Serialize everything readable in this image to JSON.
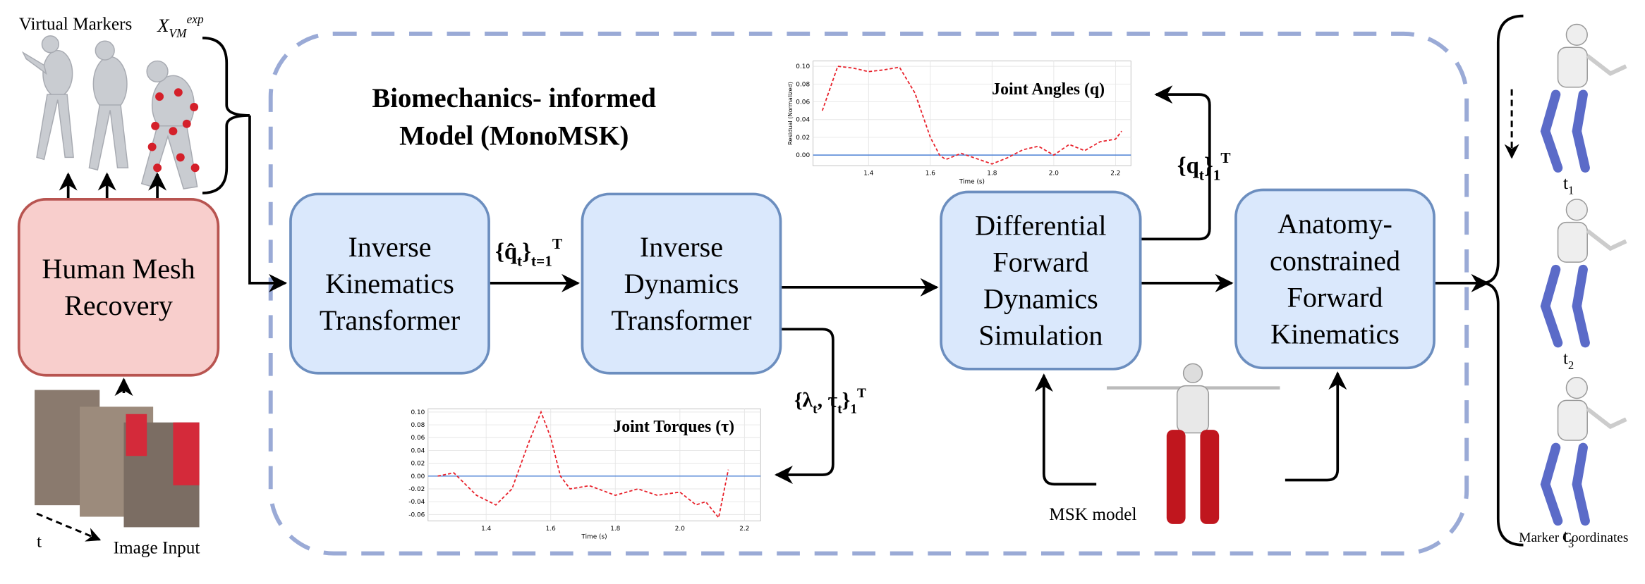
{
  "title": {
    "lines": [
      "Biomechanics- informed",
      "Model (MonoMSK)"
    ]
  },
  "virtual_markers": {
    "text": "Virtual Markers",
    "math": [
      {
        "t": "X"
      },
      {
        "t": "VM",
        "s": "sub"
      },
      {
        "t": "exp",
        "s": "sup"
      }
    ]
  },
  "image_input": "Image Input",
  "time_label": "t",
  "msk_model": "MSK model",
  "marker_coordinates": "Marker Coordinates",
  "frames": [
    [
      {
        "t": "t"
      },
      {
        "t": "1",
        "s": "sub"
      }
    ],
    [
      {
        "t": "t"
      },
      {
        "t": "2",
        "s": "sub"
      }
    ],
    [
      {
        "t": "t"
      },
      {
        "t": "3",
        "s": "sub"
      }
    ]
  ],
  "nodes": [
    {
      "lines": [
        "Human Mesh",
        "Recovery"
      ]
    },
    {
      "lines": [
        "Inverse",
        "Kinematics",
        "Transformer"
      ]
    },
    {
      "lines": [
        "Inverse",
        "Dynamics",
        "Transformer"
      ]
    },
    {
      "lines": [
        "Differential",
        "Forward",
        "Dynamics",
        "Simulation"
      ]
    },
    {
      "lines": [
        "Anatomy-",
        "constrained",
        "Forward",
        "Kinematics"
      ]
    }
  ],
  "edge_labels": {
    "q_hat": [
      {
        "t": "{q̂"
      },
      {
        "t": "t",
        "s": "sub"
      },
      {
        "t": "}"
      },
      {
        "t": "t=1",
        "s": "sub"
      },
      {
        "t": "T",
        "s": "sup"
      }
    ],
    "lambda_tau": [
      {
        "t": "{λ"
      },
      {
        "t": "t",
        "s": "sub"
      },
      {
        "t": ", τ"
      },
      {
        "t": "t",
        "s": "sub"
      },
      {
        "t": "}"
      },
      {
        "t": "1",
        "s": "sub"
      },
      {
        "t": "T",
        "s": "sup"
      }
    ],
    "q": [
      {
        "t": "{q"
      },
      {
        "t": "t",
        "s": "sub"
      },
      {
        "t": "}"
      },
      {
        "t": "1",
        "s": "sub"
      },
      {
        "t": "T",
        "s": "sup"
      }
    ]
  },
  "charts": [
    {
      "type": "line",
      "title": "Joint Angles (q)",
      "y_label": "Residual (Normalized)",
      "x_label": "Time (s)",
      "x": [
        1.25,
        1.3,
        1.35,
        1.4,
        1.45,
        1.5,
        1.55,
        1.6,
        1.63,
        1.65,
        1.7,
        1.75,
        1.8,
        1.85,
        1.9,
        1.95,
        2.0,
        2.05,
        2.1,
        2.15,
        2.2,
        2.22
      ],
      "values": [
        0.05,
        0.1,
        0.098,
        0.094,
        0.096,
        0.099,
        0.07,
        0.02,
        0.0,
        -0.005,
        0.002,
        -0.004,
        -0.01,
        -0.003,
        0.006,
        0.01,
        0.0,
        0.012,
        0.005,
        0.015,
        0.018,
        0.027
      ],
      "color": "#e8202a",
      "hline": 0,
      "hline_color": "#4a7fd4",
      "xlim": [
        1.22,
        2.25
      ],
      "ylim": [
        -0.012,
        0.106
      ],
      "xticks": [
        1.4,
        1.6,
        1.8,
        {
          "value": 2,
          "label": "2.0"
        },
        2.2
      ],
      "yticks": [
        {
          "value": 0,
          "label": "0.00"
        },
        {
          "value": 0.02,
          "label": "0.02"
        },
        {
          "value": 0.04,
          "label": "0.04"
        },
        {
          "value": 0.06,
          "label": "0.06"
        },
        {
          "value": 0.08,
          "label": "0.08"
        },
        {
          "value": 0.1,
          "label": "0.10"
        }
      ],
      "grid": true
    },
    {
      "type": "line",
      "title": "Joint Torques (τ)",
      "x_label": "Time (s)",
      "x": [
        1.25,
        1.3,
        1.34,
        1.37,
        1.43,
        1.48,
        1.53,
        1.57,
        1.6,
        1.63,
        1.66,
        1.72,
        1.8,
        1.87,
        1.93,
        2.0,
        2.05,
        2.08,
        2.12,
        2.15
      ],
      "values": [
        0.0,
        0.005,
        -0.015,
        -0.03,
        -0.045,
        -0.02,
        0.05,
        0.1,
        0.06,
        0.0,
        -0.02,
        -0.015,
        -0.03,
        -0.02,
        -0.03,
        -0.025,
        -0.045,
        -0.04,
        -0.065,
        0.01
      ],
      "color": "#e8202a",
      "hline": 0,
      "hline_color": "#4a7fd4",
      "xlim": [
        1.22,
        2.25
      ],
      "ylim": [
        -0.07,
        0.105
      ],
      "xticks": [
        1.4,
        1.6,
        1.8,
        {
          "value": 2,
          "label": "2.0"
        },
        2.2
      ],
      "yticks": [
        {
          "value": -0.06,
          "label": "-0.06"
        },
        {
          "value": -0.04,
          "label": "-0.04"
        },
        {
          "value": -0.02,
          "label": "-0.02"
        },
        {
          "value": 0,
          "label": "0.00"
        },
        {
          "value": 0.02,
          "label": "0.02"
        },
        {
          "value": 0.04,
          "label": "0.04"
        },
        {
          "value": 0.06,
          "label": "0.06"
        },
        {
          "value": 0.08,
          "label": "0.08"
        },
        {
          "value": 0.1,
          "label": "0.10"
        }
      ],
      "grid": true
    }
  ]
}
